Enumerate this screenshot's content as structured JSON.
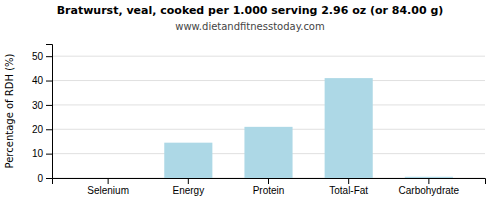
{
  "chart_data": {
    "type": "bar",
    "title": "Bratwurst, veal, cooked per 1.000 serving 2.96 oz (or 84.00 g)",
    "subtitle": "www.dietandfitnesstoday.com",
    "categories": [
      "Selenium",
      "Energy",
      "Protein",
      "Total-Fat",
      "Carbohydrate"
    ],
    "values": [
      0,
      14.5,
      21,
      41,
      0.5
    ],
    "color": "#add8e6",
    "ylabel": "Percentage of RDH (%)",
    "ylim": [
      0,
      55
    ],
    "yticks": [
      0,
      10,
      20,
      30,
      40,
      50
    ],
    "grid": true
  }
}
